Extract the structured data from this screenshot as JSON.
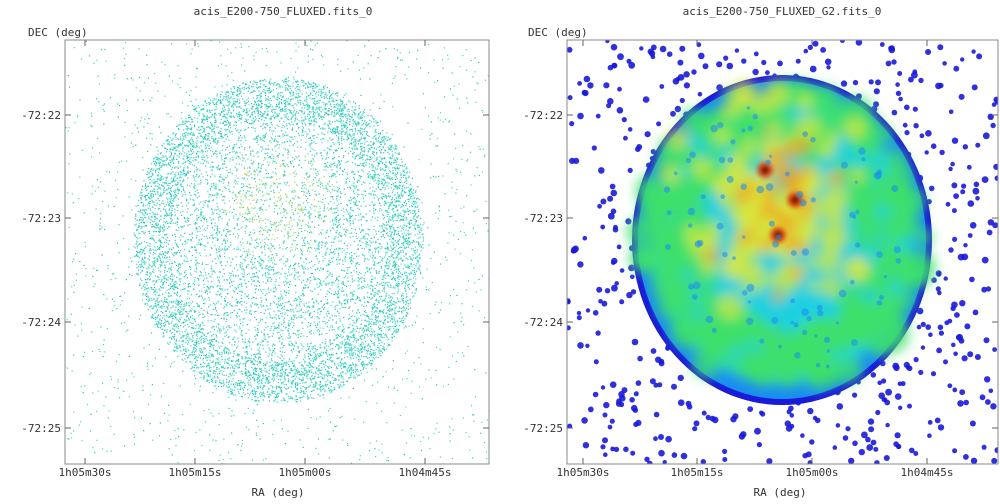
{
  "chart_data": [
    {
      "type": "scatter",
      "title": "acis_E200-750_FLUXED.fits_0",
      "xlabel": "RA (deg)",
      "ylabel": "DEC (deg)",
      "xticks": [
        "1h05m30s",
        "1h05m15s",
        "1h05m00s",
        "1h04m45s"
      ],
      "yticks": [
        "-72:22",
        "-72:23",
        "-72:24",
        "-72:25"
      ],
      "grid": false,
      "colormap": [
        "#3fd9c4",
        "#2bc6b8",
        "#7edb8a",
        "#c8d94a"
      ],
      "source": {
        "ra_center": "1h05m04s",
        "dec_center": "-72:23:10",
        "radius_arcmin": 1.3
      }
    },
    {
      "type": "heatmap",
      "title": "acis_E200-750_FLUXED_G2.fits_0",
      "xlabel": "RA (deg)",
      "ylabel": "DEC (deg)",
      "xticks": [
        "1h05m30s",
        "1h05m15s",
        "1h05m00s",
        "1h04m45s"
      ],
      "yticks": [
        "-72:22",
        "-72:23",
        "-72:24",
        "-72:25"
      ],
      "grid": false,
      "colormap": [
        "#1a1ad9",
        "#1a8cf0",
        "#1fd0e0",
        "#3fe06a",
        "#d8e83a",
        "#f0a020",
        "#e04010",
        "#6a0a00"
      ],
      "source": {
        "ra_center": "1h05m04s",
        "dec_center": "-72:23:10",
        "radius_arcmin": 1.3
      }
    }
  ]
}
